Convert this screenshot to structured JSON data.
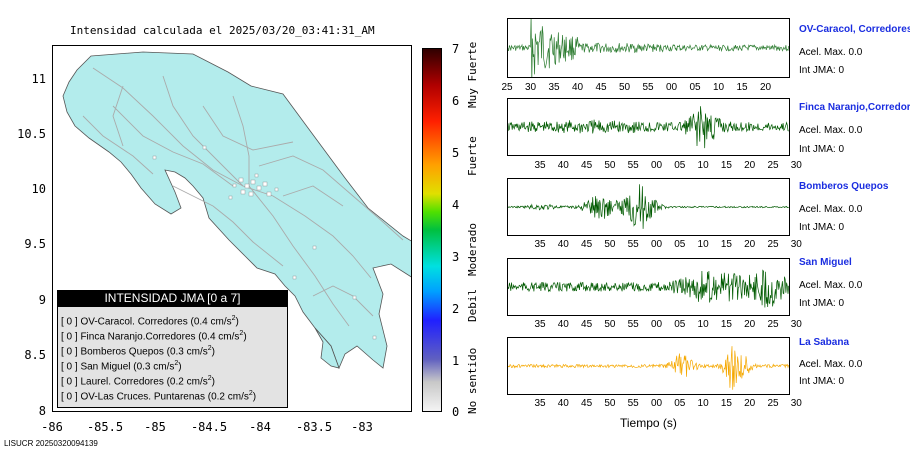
{
  "map": {
    "title": "Intensidad calculada el 2025/03/20_03:41:31_AM",
    "y_ticks": [
      "11",
      "10.5",
      "10",
      "9.5",
      "9",
      "8.5",
      "8"
    ],
    "x_ticks": [
      "-86",
      "-85.5",
      "-85",
      "-84.5",
      "-84",
      "-83.5",
      "-83"
    ],
    "land_color": "#b3ecec",
    "road_color": "#aaaaaa"
  },
  "colorbar": {
    "ticks": [
      "7",
      "6",
      "5",
      "4",
      "3",
      "2",
      "1",
      "0"
    ],
    "labels": [
      "Muy Fuerte",
      "Fuerte",
      "Moderado",
      "Debil",
      "No sentido"
    ]
  },
  "legend": {
    "title": "INTENSIDAD JMA [0 a 7]",
    "rows": [
      {
        "label": "[ 0 ]  OV-Caracol. Corredores (0.4 cm/s",
        "exp": "2",
        "close": ")"
      },
      {
        "label": "[ 0 ]  Finca Naranjo.Corredores (0.4 cm/s",
        "exp": "2",
        "close": ")"
      },
      {
        "label": "[ 0 ]  Bomberos Quepos (0.3 cm/s",
        "exp": "2",
        "close": ")"
      },
      {
        "label": "[ 0 ]  San Miguel (0.3 cm/s",
        "exp": "2",
        "close": ")"
      },
      {
        "label": "[ 0 ]  Laurel. Corredores (0.2 cm/s",
        "exp": "2",
        "close": ")"
      },
      {
        "label": "[ 0 ]  OV-Las Cruces. Puntarenas (0.2 cm/s",
        "exp": "2",
        "close": ")"
      }
    ]
  },
  "stations": [
    {
      "name": "OV-Caracol, Corredores",
      "acel": "Acel. Max. 0.0",
      "int": "Int JMA: 0",
      "color": "#2e7d32",
      "ticks": [
        "25",
        "30",
        "35",
        "40",
        "45",
        "50",
        "55",
        "00",
        "05",
        "10",
        "15",
        "20"
      ]
    },
    {
      "name": "Finca Naranjo,Corredores",
      "acel": "Acel. Max. 0.0",
      "int": "Int JMA: 0",
      "color": "#005a00",
      "ticks": [
        "35",
        "40",
        "45",
        "50",
        "55",
        "00",
        "05",
        "10",
        "15",
        "20",
        "25",
        "30"
      ]
    },
    {
      "name": "Bomberos Quepos",
      "acel": "Acel. Max. 0.0",
      "int": "Int JMA: 0",
      "color": "#005a00",
      "ticks": [
        "35",
        "40",
        "45",
        "50",
        "55",
        "00",
        "05",
        "10",
        "15",
        "20",
        "25",
        "30"
      ]
    },
    {
      "name": "San Miguel",
      "acel": "Acel. Max. 0.0",
      "int": "Int JMA: 0",
      "color": "#005a00",
      "ticks": [
        "35",
        "40",
        "45",
        "50",
        "55",
        "00",
        "05",
        "10",
        "15",
        "20",
        "25",
        "30"
      ]
    },
    {
      "name": "La Sabana",
      "acel": "Acel. Max. 0.0",
      "int": "Int JMA: 0",
      "color": "#f5a800",
      "ticks": [
        "35",
        "40",
        "45",
        "50",
        "55",
        "00",
        "05",
        "10",
        "15",
        "20",
        "25",
        "30"
      ]
    }
  ],
  "x_axis_label": "Tiempo (s)",
  "footer_id": "LISUCR 20250320094139"
}
